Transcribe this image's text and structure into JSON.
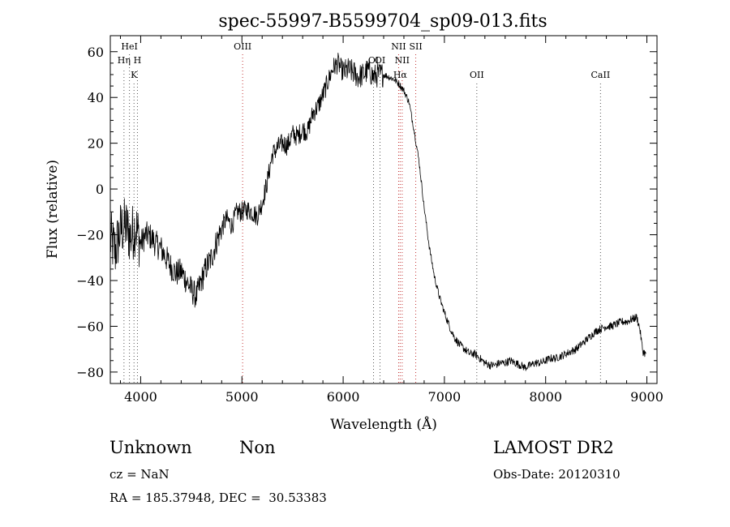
{
  "chart_data": {
    "type": "line",
    "title": "spec-55997-B5599704_sp09-013.fits",
    "xlabel": "Wavelength (Å)",
    "ylabel": "Flux (relative)",
    "xlim": [
      3700,
      9100
    ],
    "ylim": [
      -85,
      67
    ],
    "x_ticks": [
      4000,
      5000,
      6000,
      7000,
      8000,
      9000
    ],
    "y_ticks": [
      -80,
      -60,
      -40,
      -20,
      0,
      20,
      40,
      60
    ],
    "series": [
      {
        "name": "flux",
        "x": [
          3700,
          3750,
          3800,
          3850,
          3900,
          3950,
          4000,
          4050,
          4100,
          4150,
          4200,
          4250,
          4300,
          4350,
          4400,
          4450,
          4500,
          4550,
          4600,
          4650,
          4700,
          4750,
          4800,
          4850,
          4900,
          4950,
          5000,
          5050,
          5100,
          5150,
          5200,
          5250,
          5300,
          5350,
          5400,
          5450,
          5500,
          5550,
          5600,
          5650,
          5700,
          5750,
          5800,
          5850,
          5900,
          5950,
          6000,
          6050,
          6100,
          6150,
          6200,
          6250,
          6300,
          6350,
          6400,
          6450,
          6500,
          6550,
          6600,
          6650,
          6700,
          6750,
          6800,
          6850,
          6900,
          6950,
          7000,
          7050,
          7100,
          7150,
          7200,
          7250,
          7300,
          7350,
          7400,
          7450,
          7500,
          7550,
          7600,
          7650,
          7700,
          7750,
          7800,
          7850,
          7900,
          7950,
          8000,
          8050,
          8100,
          8150,
          8200,
          8250,
          8300,
          8350,
          8400,
          8450,
          8500,
          8550,
          8600,
          8650,
          8700,
          8750,
          8800,
          8850,
          8900,
          8930,
          8960,
          8990
        ],
        "y": [
          -22,
          -27,
          -18,
          -16,
          -21,
          -16,
          -24,
          -20,
          -21,
          -24,
          -26,
          -30,
          -34,
          -37,
          -36,
          -40,
          -44,
          -47,
          -40,
          -34,
          -30,
          -23,
          -17,
          -13,
          -16,
          -10,
          -10,
          -9,
          -10,
          -12,
          -6,
          3,
          15,
          18,
          20,
          19,
          24,
          23,
          26,
          25,
          33,
          36,
          41,
          47,
          53,
          55,
          51,
          52,
          51,
          49,
          50,
          52,
          49,
          50,
          50,
          49,
          48,
          46,
          43,
          38,
          26,
          12,
          -8,
          -25,
          -38,
          -47,
          -54,
          -60,
          -65,
          -68,
          -70,
          -72,
          -72,
          -74,
          -76,
          -77,
          -77,
          -76,
          -76,
          -75,
          -76,
          -77,
          -78,
          -77,
          -76,
          -76,
          -75,
          -74,
          -74,
          -73,
          -72,
          -71,
          -70,
          -68,
          -66,
          -64,
          -62,
          -61,
          -60,
          -60,
          -59,
          -58,
          -58,
          -57,
          -56,
          -61,
          -71,
          -72
        ]
      }
    ],
    "line_markers": [
      {
        "label": "HeI",
        "x": 3889,
        "row": 0,
        "color": "#555555"
      },
      {
        "label": "Hη",
        "x": 3835,
        "row": 1,
        "color": "#555555"
      },
      {
        "label": "H",
        "x": 3968,
        "row": 1,
        "color": "#555555"
      },
      {
        "label": "K",
        "x": 3934,
        "row": 2,
        "color": "#555555"
      },
      {
        "label": "OIII",
        "x": 5007,
        "row": 0,
        "color": "#c33333"
      },
      {
        "label": "OI",
        "x": 6300,
        "row": 1,
        "color": "#555555"
      },
      {
        "label": "OI",
        "x": 6364,
        "row": 1,
        "color": "#555555"
      },
      {
        "label": "NII",
        "x": 6548,
        "row": 0,
        "color": "#c33333"
      },
      {
        "label": "SII",
        "x": 6717,
        "row": 0,
        "color": "#c33333"
      },
      {
        "label": "NII",
        "x": 6583,
        "row": 1,
        "color": "#c33333"
      },
      {
        "label": "Hα",
        "x": 6563,
        "row": 2,
        "color": "#c33333"
      },
      {
        "label": "OII",
        "x": 7320,
        "row": 2,
        "color": "#555555"
      },
      {
        "label": "CaII",
        "x": 8542,
        "row": 2,
        "color": "#555555"
      }
    ]
  },
  "footer": {
    "class_label": "Unknown",
    "subclass_label": "Non",
    "cz": "cz = NaN",
    "coords": "RA = 185.37948, DEC =  30.53383",
    "survey": "LAMOST DR2",
    "obs_date": "Obs-Date: 20120310"
  }
}
